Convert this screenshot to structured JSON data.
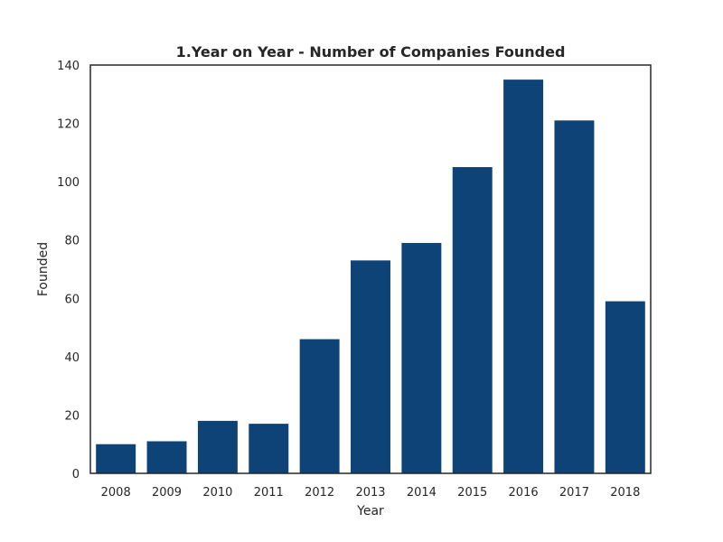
{
  "chart_data": {
    "type": "bar",
    "title": "1.Year on Year - Number of Companies Founded",
    "xlabel": "Year",
    "ylabel": "Founded",
    "categories": [
      "2008",
      "2009",
      "2010",
      "2011",
      "2012",
      "2013",
      "2014",
      "2015",
      "2016",
      "2017",
      "2018"
    ],
    "values": [
      10,
      11,
      18,
      17,
      46,
      73,
      79,
      105,
      135,
      121,
      59
    ],
    "ylim": [
      0,
      140
    ],
    "yticks": [
      0,
      20,
      40,
      60,
      80,
      100,
      120,
      140
    ],
    "grid": false,
    "bar_color": "#0e4378"
  }
}
